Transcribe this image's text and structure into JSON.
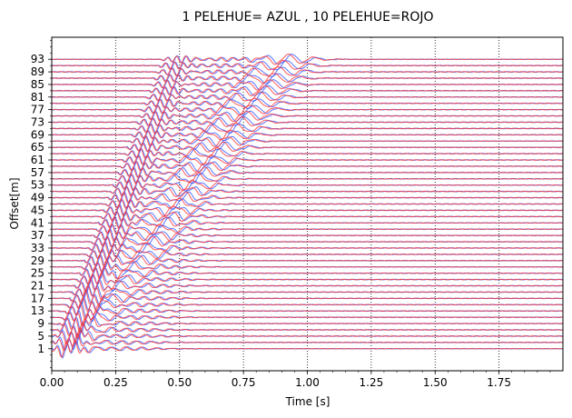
{
  "chart_data": {
    "type": "line",
    "title": "1 PELEHUE= AZUL , 10 PELEHUE=ROJO",
    "xlabel": "Time [s]",
    "ylabel": "Offset[m]",
    "xlim": [
      0,
      2.0
    ],
    "ylim": [
      -6,
      100
    ],
    "xticks": [
      0.0,
      0.25,
      0.5,
      0.75,
      1.0,
      1.25,
      1.5,
      1.75
    ],
    "xtick_labels": [
      "0.00",
      "0.25",
      "0.50",
      "0.75",
      "1.00",
      "1.25",
      "1.50",
      "1.75"
    ],
    "yticks": [
      1,
      5,
      9,
      13,
      17,
      21,
      25,
      29,
      33,
      37,
      41,
      45,
      49,
      53,
      57,
      61,
      65,
      69,
      73,
      77,
      81,
      85,
      89,
      93
    ],
    "ytick_labels": [
      "1",
      "5",
      "9",
      "13",
      "17",
      "21",
      "25",
      "29",
      "33",
      "37",
      "41",
      "45",
      "49",
      "53",
      "57",
      "61",
      "65",
      "69",
      "73",
      "77",
      "81",
      "85",
      "89",
      "93"
    ],
    "grid": "x-dotted",
    "legend": "none",
    "traces": {
      "offsets": [
        1,
        3,
        5,
        7,
        9,
        11,
        13,
        15,
        17,
        19,
        21,
        23,
        25,
        27,
        29,
        31,
        33,
        35,
        37,
        39,
        41,
        43,
        45,
        47,
        49,
        51,
        53,
        55,
        57,
        59,
        61,
        63,
        65,
        67,
        69,
        71,
        73,
        75,
        77,
        79,
        81,
        83,
        85,
        87,
        89,
        91,
        93
      ],
      "time_range": [
        0,
        2.0
      ]
    },
    "series": [
      {
        "name": "1 PELEHUE",
        "color": "#3355ff"
      },
      {
        "name": "10 PELEHUE",
        "color": "#ff3333"
      }
    ]
  }
}
